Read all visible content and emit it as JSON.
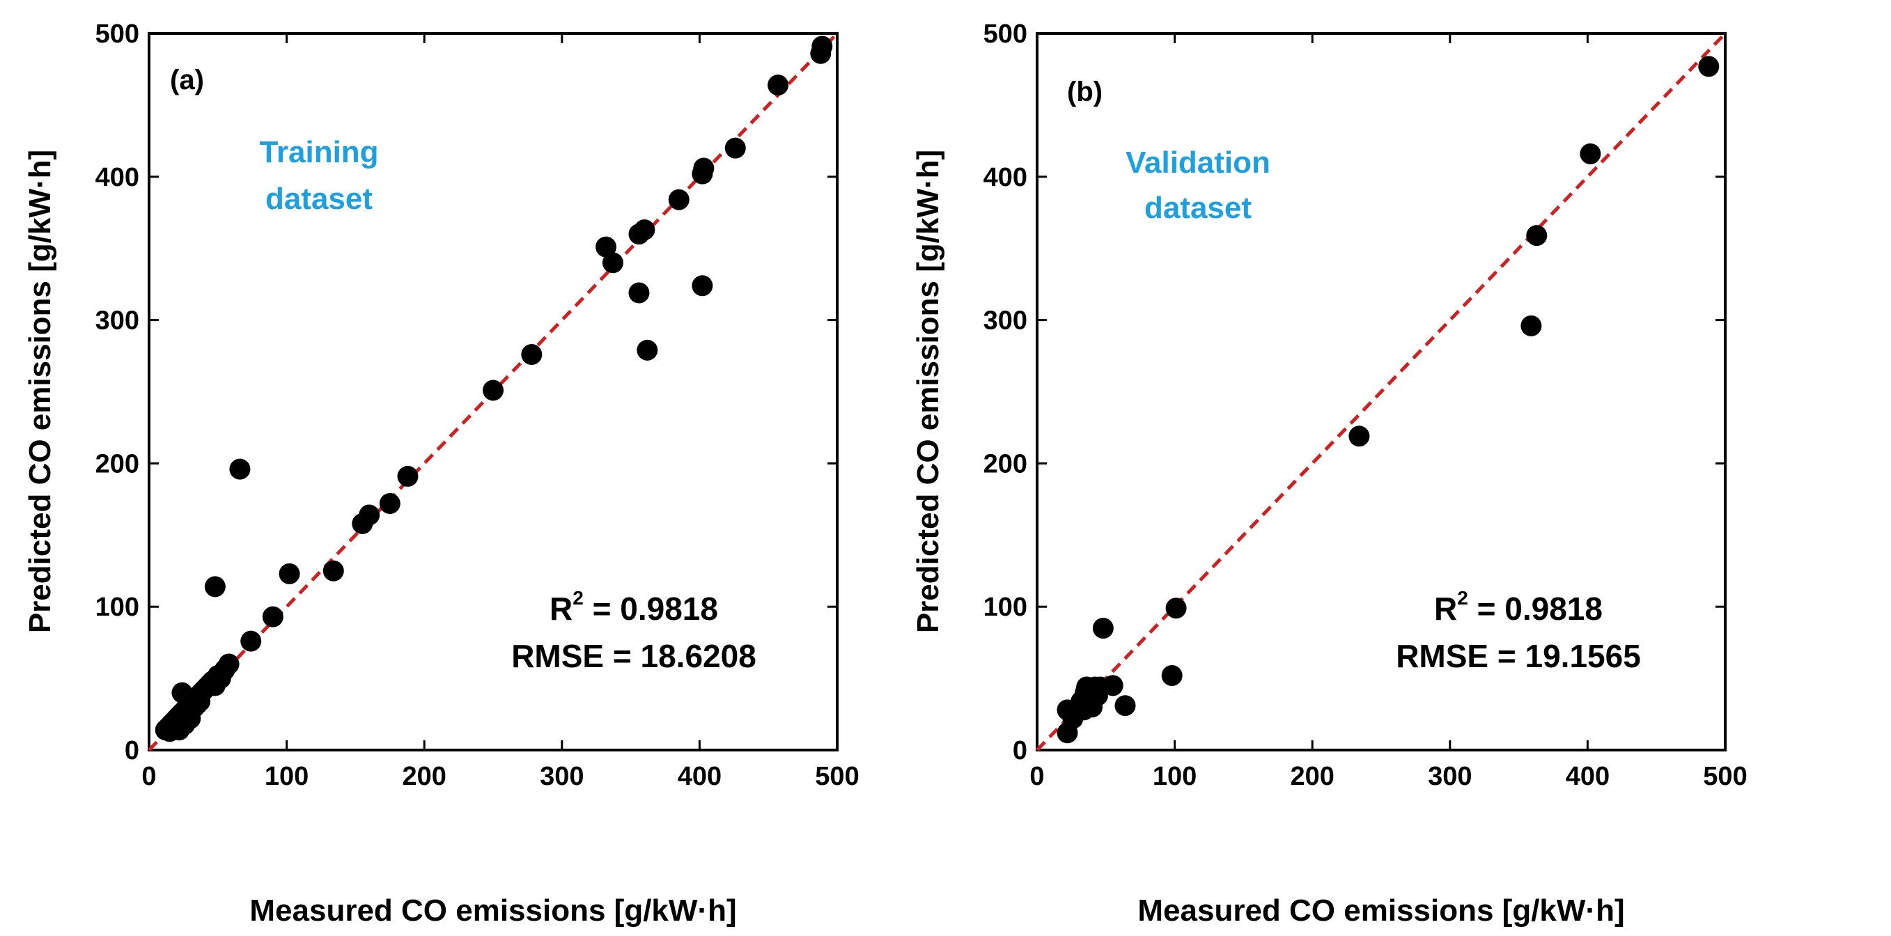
{
  "figure": {
    "colors": {
      "points": "#000000",
      "identity_line": "#cc2222",
      "dataset_text": "#1ea0e0"
    }
  },
  "chart_data": [
    {
      "type": "scatter",
      "panel_label": "(a)",
      "dataset_label_line1": "Training",
      "dataset_label_line2": "dataset",
      "xlabel": "Measured CO emissions [g/kW·h]",
      "ylabel": "Predicted CO emissions [g/kW·h]",
      "xlim": [
        0,
        500
      ],
      "ylim": [
        0,
        500
      ],
      "xticks": [
        0,
        100,
        200,
        300,
        400,
        500
      ],
      "yticks": [
        0,
        100,
        200,
        300,
        400,
        500
      ],
      "xtick_labels": [
        "0",
        "100",
        "200",
        "300",
        "400",
        "500"
      ],
      "ytick_labels": [
        "0",
        "100",
        "200",
        "300",
        "400",
        "500"
      ],
      "identity_line": true,
      "stats": {
        "r2_prefix": "R",
        "r2_sup": "2",
        "r2_value": " = 0.9818",
        "rmse": "RMSE = 18.6208"
      },
      "points": [
        [
          12,
          14
        ],
        [
          14,
          16
        ],
        [
          15,
          13
        ],
        [
          16,
          18
        ],
        [
          17,
          15
        ],
        [
          18,
          20
        ],
        [
          19,
          17
        ],
        [
          20,
          22
        ],
        [
          21,
          19
        ],
        [
          22,
          24
        ],
        [
          23,
          20
        ],
        [
          24,
          26
        ],
        [
          25,
          22
        ],
        [
          26,
          28
        ],
        [
          27,
          24
        ],
        [
          28,
          30
        ],
        [
          29,
          26
        ],
        [
          30,
          32
        ],
        [
          31,
          28
        ],
        [
          32,
          34
        ],
        [
          33,
          30
        ],
        [
          34,
          36
        ],
        [
          35,
          32
        ],
        [
          36,
          38
        ],
        [
          37,
          34
        ],
        [
          38,
          40
        ],
        [
          40,
          42
        ],
        [
          42,
          44
        ],
        [
          44,
          46
        ],
        [
          46,
          48
        ],
        [
          48,
          45
        ],
        [
          50,
          52
        ],
        [
          52,
          50
        ],
        [
          55,
          56
        ],
        [
          58,
          60
        ],
        [
          24,
          40
        ],
        [
          30,
          22
        ],
        [
          26,
          18
        ],
        [
          22,
          14
        ],
        [
          66,
          196
        ],
        [
          48,
          114
        ],
        [
          102,
          123
        ],
        [
          90,
          93
        ],
        [
          74,
          76
        ],
        [
          134,
          125
        ],
        [
          155,
          158
        ],
        [
          160,
          164
        ],
        [
          175,
          172
        ],
        [
          188,
          191
        ],
        [
          250,
          251
        ],
        [
          278,
          276
        ],
        [
          332,
          351
        ],
        [
          337,
          340
        ],
        [
          356,
          360
        ],
        [
          360,
          363
        ],
        [
          356,
          319
        ],
        [
          362,
          279
        ],
        [
          385,
          384
        ],
        [
          402,
          402
        ],
        [
          403,
          406
        ],
        [
          402,
          324
        ],
        [
          426,
          420
        ],
        [
          457,
          464
        ],
        [
          488,
          486
        ],
        [
          489,
          491
        ]
      ]
    },
    {
      "type": "scatter",
      "panel_label": "(b)",
      "dataset_label_line1": "Validation",
      "dataset_label_line2": "dataset",
      "xlabel": "Measured CO emissions [g/kW·h]",
      "ylabel": "Predicted CO emissions [g/kW·h]",
      "xlim": [
        0,
        500
      ],
      "ylim": [
        0,
        500
      ],
      "xticks": [
        0,
        100,
        200,
        300,
        400,
        500
      ],
      "yticks": [
        0,
        100,
        200,
        300,
        400,
        500
      ],
      "xtick_labels": [
        "0",
        "100",
        "200",
        "300",
        "400",
        "500"
      ],
      "ytick_labels": [
        "0",
        "100",
        "200",
        "300",
        "400",
        "500"
      ],
      "identity_line": true,
      "stats": {
        "r2_prefix": "R",
        "r2_sup": "2",
        "r2_value": " = 0.9818",
        "rmse": "RMSE = 19.1565"
      },
      "points": [
        [
          22,
          12
        ],
        [
          22,
          28
        ],
        [
          26,
          22
        ],
        [
          28,
          26
        ],
        [
          30,
          30
        ],
        [
          32,
          34
        ],
        [
          34,
          28
        ],
        [
          35,
          40
        ],
        [
          36,
          44
        ],
        [
          38,
          36
        ],
        [
          40,
          42
        ],
        [
          40,
          30
        ],
        [
          42,
          44
        ],
        [
          44,
          38
        ],
        [
          46,
          44
        ],
        [
          48,
          85
        ],
        [
          55,
          45
        ],
        [
          64,
          31
        ],
        [
          98,
          52
        ],
        [
          101,
          99
        ],
        [
          234,
          219
        ],
        [
          359,
          296
        ],
        [
          363,
          359
        ],
        [
          402,
          416
        ],
        [
          488,
          477
        ]
      ]
    }
  ]
}
